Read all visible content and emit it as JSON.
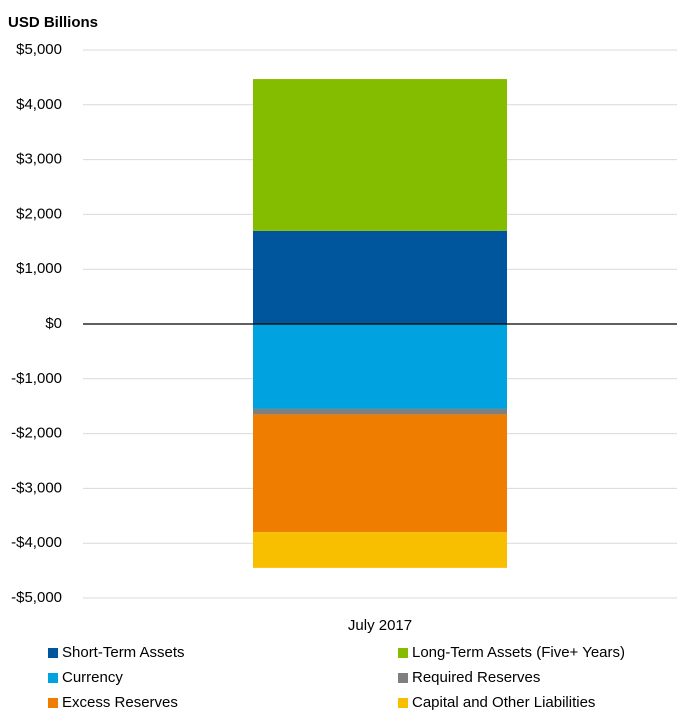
{
  "chart_data": {
    "type": "stacked_bar",
    "y_label": "USD Billions",
    "categories": [
      "July 2017"
    ],
    "series": [
      {
        "name": "Short-Term Assets",
        "color": "#00569c",
        "values": [
          1700
        ]
      },
      {
        "name": "Long-Term Assets (Five+ Years)",
        "color": "#84bd00",
        "values": [
          2770
        ]
      },
      {
        "name": "Currency",
        "color": "#00a3e0",
        "values": [
          -1550
        ]
      },
      {
        "name": "Required Reserves",
        "color": "#7f7f7f",
        "values": [
          -100
        ]
      },
      {
        "name": "Excess Reserves",
        "color": "#ef7d00",
        "values": [
          -2150
        ]
      },
      {
        "name": "Capital and Other Liabilities",
        "color": "#f8be00",
        "values": [
          -650
        ]
      }
    ],
    "ylim": [
      -5000,
      5000
    ],
    "yticks": [
      {
        "value": 5000,
        "label": "$5,000"
      },
      {
        "value": 4000,
        "label": "$4,000"
      },
      {
        "value": 3000,
        "label": "$3,000"
      },
      {
        "value": 2000,
        "label": "$2,000"
      },
      {
        "value": 1000,
        "label": "$1,000"
      },
      {
        "value": 0,
        "label": "$0"
      },
      {
        "value": -1000,
        "label": "-$1,000"
      },
      {
        "value": -2000,
        "label": "-$2,000"
      },
      {
        "value": -3000,
        "label": "-$3,000"
      },
      {
        "value": -4000,
        "label": "-$4,000"
      },
      {
        "value": -5000,
        "label": "-$5,000"
      }
    ],
    "grid": true
  }
}
